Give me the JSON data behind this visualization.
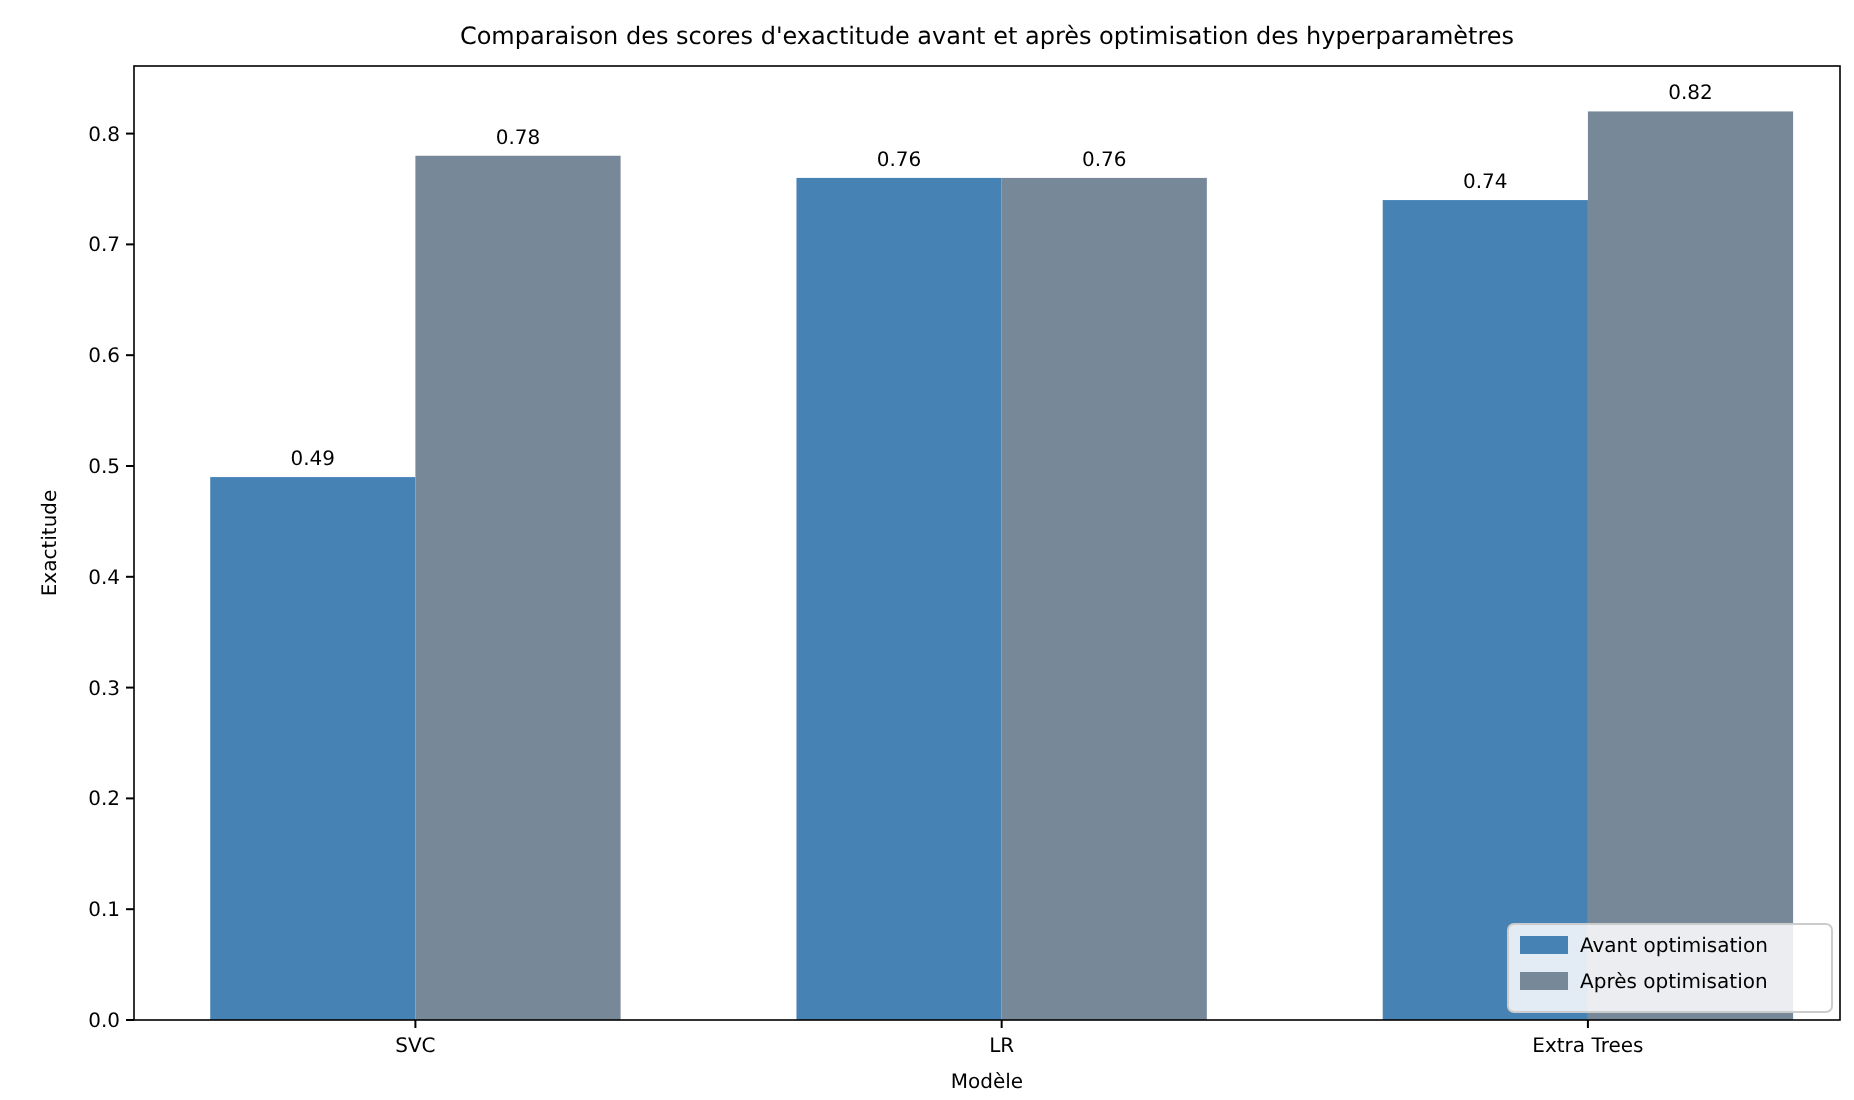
{
  "chart_data": {
    "type": "bar",
    "title": "Comparaison des scores d'exactitude avant et après optimisation des hyperparamètres",
    "xlabel": "Modèle",
    "ylabel": "Exactitude",
    "categories": [
      "SVC",
      "LR",
      "Extra Trees"
    ],
    "series": [
      {
        "name": "Avant optimisation",
        "color": "#4682b4",
        "values": [
          0.49,
          0.76,
          0.74
        ]
      },
      {
        "name": "Après optimisation",
        "color": "#778899",
        "values": [
          0.78,
          0.76,
          0.82
        ]
      }
    ],
    "ylim": [
      0,
      0.861
    ],
    "yticks": [
      {
        "value": 0,
        "label": "0.0"
      },
      0.1,
      0.2,
      0.3,
      0.4,
      0.5,
      0.6,
      0.7,
      0.8
    ],
    "data_labels": true,
    "legend": "bottom right",
    "grid": false
  }
}
